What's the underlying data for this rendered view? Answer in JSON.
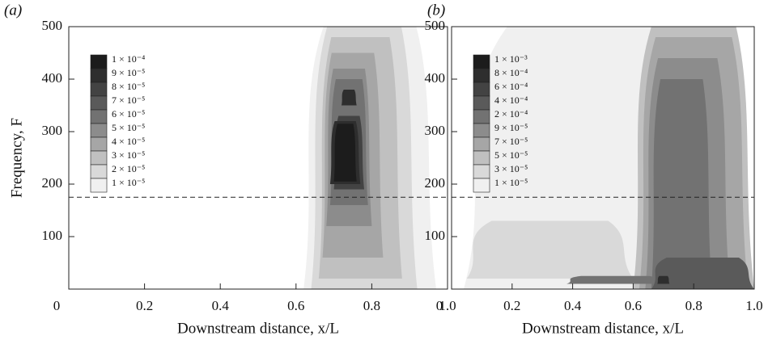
{
  "chart_data": [
    {
      "type": "contour",
      "panel_label": "(a)",
      "x_label": "Downstream distance, x/L",
      "y_label": "Frequency, F",
      "xlim": [
        0,
        1
      ],
      "ylim": [
        0,
        500
      ],
      "xticks": [
        0,
        0.2,
        0.4,
        0.6,
        0.8,
        {
          "value": 1,
          "label": "1.0"
        }
      ],
      "yticks": [
        100,
        200,
        300,
        400,
        500
      ],
      "hline": 175,
      "levels": [
        0.0001,
        9e-05,
        8e-05,
        7e-05,
        6e-05,
        5e-05,
        4e-05,
        3e-05,
        2e-05,
        1e-05
      ],
      "level_labels": [
        "1 × 10⁻⁴",
        "9 × 10⁻⁵",
        "8 × 10⁻⁵",
        "7 × 10⁻⁵",
        "6 × 10⁻⁵",
        "5 × 10⁻⁵",
        "4 × 10⁻⁵",
        "3 × 10⁻⁵",
        "2 × 10⁻⁵",
        "1 × 10⁻⁵"
      ],
      "level_colors": [
        "#1c1c1c",
        "#2e2e2e",
        "#434343",
        "#5a5a5a",
        "#727272",
        "#8c8c8c",
        "#a6a6a6",
        "#c0c0c0",
        "#d9d9d9",
        "#f0f0f0"
      ]
    },
    {
      "type": "contour",
      "panel_label": "(b)",
      "x_label": "Downstream distance, x/L",
      "xlim": [
        0,
        1
      ],
      "ylim": [
        0,
        500
      ],
      "xticks": [
        0,
        0.2,
        0.4,
        0.6,
        0.8,
        {
          "value": 1,
          "label": "1.0"
        }
      ],
      "yticks": [
        100,
        200,
        300,
        400,
        500
      ],
      "hline": 175,
      "levels": [
        0.001,
        0.0008,
        0.0006,
        0.0004,
        0.0002,
        9e-05,
        7e-05,
        5e-05,
        3e-05,
        1e-05
      ],
      "level_labels": [
        "1 × 10⁻³",
        "8 × 10⁻⁴",
        "6 × 10⁻⁴",
        "4 × 10⁻⁴",
        "2 × 10⁻⁴",
        "9 × 10⁻⁵",
        "7 × 10⁻⁵",
        "5 × 10⁻⁵",
        "3 × 10⁻⁵",
        "1 × 10⁻⁵"
      ],
      "level_colors": [
        "#1c1c1c",
        "#2e2e2e",
        "#434343",
        "#5a5a5a",
        "#727272",
        "#8c8c8c",
        "#a6a6a6",
        "#c0c0c0",
        "#d9d9d9",
        "#f0f0f0"
      ]
    }
  ]
}
